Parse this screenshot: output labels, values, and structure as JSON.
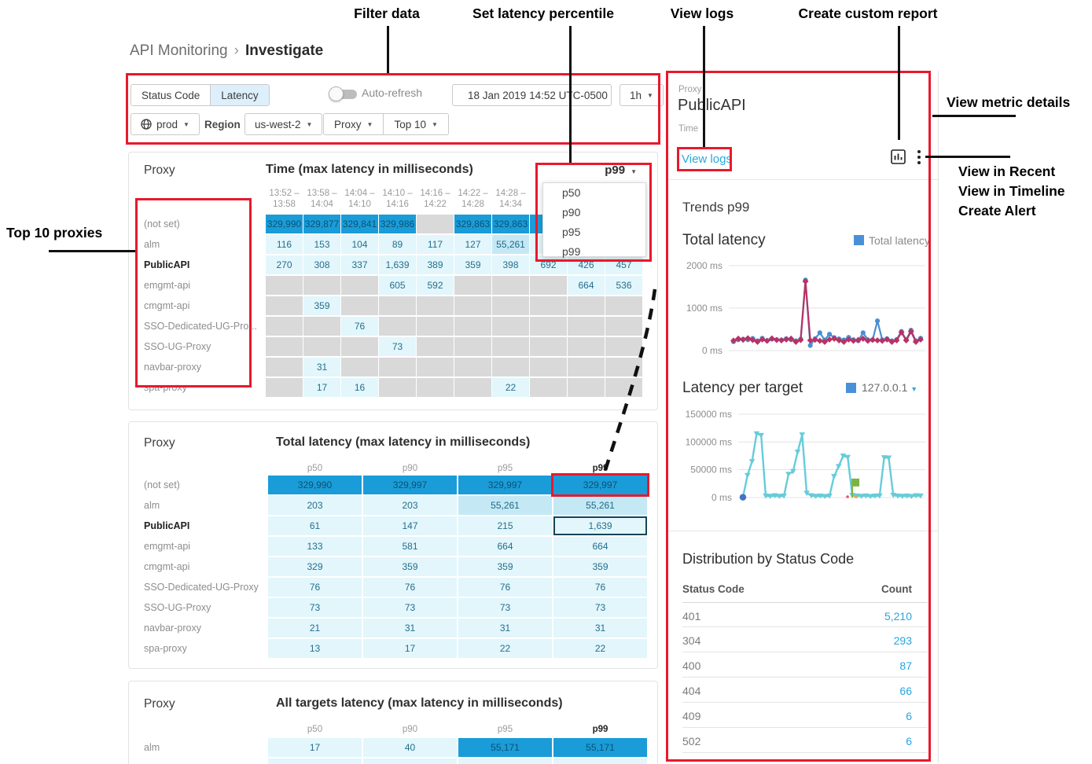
{
  "breadcrumb": {
    "parent": "API Monitoring",
    "separator": "›",
    "current": "Investigate"
  },
  "annotations": {
    "filter_data": "Filter data",
    "set_latency_percentile": "Set latency percentile",
    "view_logs": "View logs",
    "create_custom_report": "Create custom report",
    "view_metric_details": "View metric details",
    "menu_items": [
      "View in Recent",
      "View in Timeline",
      "Create Alert"
    ],
    "top_10_proxies": "Top 10 proxies"
  },
  "toolbar": {
    "metric_tabs": [
      {
        "label": "Status Code",
        "selected": false
      },
      {
        "label": "Latency",
        "selected": true
      }
    ],
    "auto_refresh_label": "Auto-refresh",
    "auto_refresh_on": false,
    "datetime": "18 Jan 2019 14:52 UTC-0500",
    "range": "1h",
    "env": "prod",
    "region_label": "Region",
    "region": "us-west-2",
    "dimension": "Proxy",
    "top_filter": "Top 10"
  },
  "percentile_dropdown": {
    "selected": "p99",
    "options": [
      "p50",
      "p90",
      "p95",
      "p99"
    ]
  },
  "table1": {
    "row_header": "Proxy",
    "title": "Time (max latency in milliseconds)",
    "col_headers": [
      "13:52 –\n13:58",
      "13:58 –\n14:04",
      "14:04 –\n14:10",
      "14:10 –\n14:16",
      "14:16 –\n14:22",
      "14:22 –\n14:28",
      "14:28 –\n14:34",
      "",
      "",
      ""
    ],
    "rows": [
      {
        "label": "(not set)",
        "bold": false,
        "cells": [
          [
            "329,990",
            "dark"
          ],
          [
            "329,877",
            "dark"
          ],
          [
            "329,841",
            "dark"
          ],
          [
            "329,986",
            "dark"
          ],
          [
            "",
            "gray"
          ],
          [
            "329,863",
            "dark"
          ],
          [
            "329,863",
            "dark"
          ],
          [
            "",
            "dark"
          ],
          [
            "",
            "dark"
          ],
          [
            "",
            "dark"
          ]
        ]
      },
      {
        "label": "alm",
        "bold": false,
        "cells": [
          [
            "116",
            "light"
          ],
          [
            "153",
            "light"
          ],
          [
            "104",
            "light"
          ],
          [
            "89",
            "light"
          ],
          [
            "117",
            "light"
          ],
          [
            "127",
            "light"
          ],
          [
            "55,261",
            "med"
          ],
          [
            "",
            "light"
          ],
          [
            "",
            "light"
          ],
          [
            "",
            "light"
          ]
        ]
      },
      {
        "label": "PublicAPI",
        "bold": true,
        "cells": [
          [
            "270",
            "light"
          ],
          [
            "308",
            "light"
          ],
          [
            "337",
            "light"
          ],
          [
            "1,639",
            "light"
          ],
          [
            "389",
            "light"
          ],
          [
            "359",
            "light"
          ],
          [
            "398",
            "light"
          ],
          [
            "692",
            "light"
          ],
          [
            "426",
            "light"
          ],
          [
            "457",
            "light"
          ]
        ]
      },
      {
        "label": "emgmt-api",
        "bold": false,
        "cells": [
          [
            "",
            "gray"
          ],
          [
            "",
            "gray"
          ],
          [
            "",
            "gray"
          ],
          [
            "605",
            "light"
          ],
          [
            "592",
            "light"
          ],
          [
            "",
            "gray"
          ],
          [
            "",
            "gray"
          ],
          [
            "",
            "gray"
          ],
          [
            "664",
            "light"
          ],
          [
            "536",
            "light"
          ]
        ]
      },
      {
        "label": "cmgmt-api",
        "bold": false,
        "cells": [
          [
            "",
            "gray"
          ],
          [
            "359",
            "light"
          ],
          [
            "",
            "gray"
          ],
          [
            "",
            "gray"
          ],
          [
            "",
            "gray"
          ],
          [
            "",
            "gray"
          ],
          [
            "",
            "gray"
          ],
          [
            "",
            "gray"
          ],
          [
            "",
            "gray"
          ],
          [
            "",
            "gray"
          ]
        ]
      },
      {
        "label": "SSO-Dedicated-UG-Pro...",
        "bold": false,
        "cells": [
          [
            "",
            "gray"
          ],
          [
            "",
            "gray"
          ],
          [
            "76",
            "light"
          ],
          [
            "",
            "gray"
          ],
          [
            "",
            "gray"
          ],
          [
            "",
            "gray"
          ],
          [
            "",
            "gray"
          ],
          [
            "",
            "gray"
          ],
          [
            "",
            "gray"
          ],
          [
            "",
            "gray"
          ]
        ]
      },
      {
        "label": "SSO-UG-Proxy",
        "bold": false,
        "cells": [
          [
            "",
            "gray"
          ],
          [
            "",
            "gray"
          ],
          [
            "",
            "gray"
          ],
          [
            "73",
            "light"
          ],
          [
            "",
            "gray"
          ],
          [
            "",
            "gray"
          ],
          [
            "",
            "gray"
          ],
          [
            "",
            "gray"
          ],
          [
            "",
            "gray"
          ],
          [
            "",
            "gray"
          ]
        ]
      },
      {
        "label": "navbar-proxy",
        "bold": false,
        "cells": [
          [
            "",
            "gray"
          ],
          [
            "31",
            "light"
          ],
          [
            "",
            "gray"
          ],
          [
            "",
            "gray"
          ],
          [
            "",
            "gray"
          ],
          [
            "",
            "gray"
          ],
          [
            "",
            "gray"
          ],
          [
            "",
            "gray"
          ],
          [
            "",
            "gray"
          ],
          [
            "",
            "gray"
          ]
        ]
      },
      {
        "label": "spa-proxy",
        "bold": false,
        "cells": [
          [
            "",
            "gray"
          ],
          [
            "17",
            "light"
          ],
          [
            "16",
            "light"
          ],
          [
            "",
            "gray"
          ],
          [
            "",
            "gray"
          ],
          [
            "",
            "gray"
          ],
          [
            "22",
            "light"
          ],
          [
            "",
            "gray"
          ],
          [
            "",
            "gray"
          ],
          [
            "",
            "gray"
          ]
        ]
      }
    ]
  },
  "table2": {
    "row_header": "Proxy",
    "title": "Total latency (max latency in milliseconds)",
    "col_headers": [
      "p50",
      "p90",
      "p95",
      "p99"
    ],
    "rows": [
      {
        "label": "(not set)",
        "bold": false,
        "cells": [
          [
            "329,990",
            "dark"
          ],
          [
            "329,997",
            "dark"
          ],
          [
            "329,997",
            "dark"
          ],
          [
            "329,997",
            "darkred"
          ]
        ]
      },
      {
        "label": "alm",
        "bold": false,
        "cells": [
          [
            "203",
            "light"
          ],
          [
            "203",
            "light"
          ],
          [
            "55,261",
            "med"
          ],
          [
            "55,261",
            "med"
          ]
        ]
      },
      {
        "label": "PublicAPI",
        "bold": true,
        "cells": [
          [
            "61",
            "light"
          ],
          [
            "147",
            "light"
          ],
          [
            "215",
            "light"
          ],
          [
            "1,639",
            "lightsel"
          ]
        ]
      },
      {
        "label": "emgmt-api",
        "bold": false,
        "cells": [
          [
            "133",
            "light"
          ],
          [
            "581",
            "light"
          ],
          [
            "664",
            "light"
          ],
          [
            "664",
            "light"
          ]
        ]
      },
      {
        "label": "cmgmt-api",
        "bold": false,
        "cells": [
          [
            "329",
            "light"
          ],
          [
            "359",
            "light"
          ],
          [
            "359",
            "light"
          ],
          [
            "359",
            "light"
          ]
        ]
      },
      {
        "label": "SSO-Dedicated-UG-Proxy",
        "bold": false,
        "cells": [
          [
            "76",
            "light"
          ],
          [
            "76",
            "light"
          ],
          [
            "76",
            "light"
          ],
          [
            "76",
            "light"
          ]
        ]
      },
      {
        "label": "SSO-UG-Proxy",
        "bold": false,
        "cells": [
          [
            "73",
            "light"
          ],
          [
            "73",
            "light"
          ],
          [
            "73",
            "light"
          ],
          [
            "73",
            "light"
          ]
        ]
      },
      {
        "label": "navbar-proxy",
        "bold": false,
        "cells": [
          [
            "21",
            "light"
          ],
          [
            "31",
            "light"
          ],
          [
            "31",
            "light"
          ],
          [
            "31",
            "light"
          ]
        ]
      },
      {
        "label": "spa-proxy",
        "bold": false,
        "cells": [
          [
            "13",
            "light"
          ],
          [
            "17",
            "light"
          ],
          [
            "22",
            "light"
          ],
          [
            "22",
            "light"
          ]
        ]
      }
    ]
  },
  "table3": {
    "row_header": "Proxy",
    "title": "All targets latency (max latency in milliseconds)",
    "col_headers": [
      "p50",
      "p90",
      "p95",
      "p99"
    ],
    "rows": [
      {
        "label": "alm",
        "bold": false,
        "cells": [
          [
            "17",
            "light"
          ],
          [
            "40",
            "light"
          ],
          [
            "55,171",
            "dark"
          ],
          [
            "55,171",
            "dark"
          ]
        ]
      }
    ],
    "partial_row": [
      "light",
      "light",
      "light",
      "light"
    ]
  },
  "right_panel": {
    "proxy_label": "Proxy",
    "proxy_value": "PublicAPI",
    "time_label": "Time",
    "view_logs": "View logs",
    "trends_title": "Trends p99",
    "status_section_title": "Distribution by Status Code",
    "status_table": {
      "headers": [
        "Status Code",
        "Count"
      ],
      "rows": [
        [
          "401",
          "5,210"
        ],
        [
          "304",
          "293"
        ],
        [
          "400",
          "87"
        ],
        [
          "404",
          "66"
        ],
        [
          "409",
          "6"
        ],
        [
          "502",
          "6"
        ]
      ]
    }
  },
  "chart_data": [
    {
      "type": "line",
      "title": "Total latency",
      "section": "Trends p99",
      "legend": [
        "Total latency"
      ],
      "legend_position": "top-right",
      "grid": true,
      "ylim": [
        0,
        2000
      ],
      "yticks": [
        0,
        1000,
        2000
      ],
      "ytick_labels": [
        "0 ms",
        "1000 ms",
        "2000 ms"
      ],
      "series": [
        {
          "name": "Total latency (p99, blue)",
          "color": "#4a8fd3",
          "marker": "circle",
          "values": [
            210,
            255,
            270,
            255,
            285,
            230,
            290,
            235,
            270,
            255,
            250,
            280,
            255,
            230,
            270,
            1660,
            120,
            280,
            420,
            250,
            385,
            305,
            275,
            250,
            310,
            255,
            230,
            420,
            255,
            250,
            700,
            255,
            280,
            230,
            260,
            450,
            255,
            480,
            230,
            290
          ]
        },
        {
          "name": "Total latency (p99, magenta)",
          "color": "#b93263",
          "marker": "diamond",
          "values": [
            235,
            280,
            255,
            290,
            250,
            205,
            260,
            230,
            285,
            250,
            240,
            260,
            280,
            205,
            250,
            1630,
            240,
            255,
            230,
            205,
            260,
            280,
            240,
            205,
            260,
            230,
            250,
            280,
            230,
            255,
            240,
            230,
            260,
            205,
            240,
            430,
            240,
            450,
            205,
            260
          ]
        }
      ]
    },
    {
      "type": "line",
      "title": "Latency per target",
      "legend": [
        "127.0.0.1"
      ],
      "legend_position": "top-right",
      "grid": true,
      "ylim": [
        0,
        150000
      ],
      "yticks": [
        0,
        50000,
        100000,
        150000
      ],
      "ytick_labels": [
        "0 ms",
        "50000 ms",
        "100000 ms",
        "150000 ms"
      ],
      "series": [
        {
          "name": "127.0.0.1",
          "color": "#66ccd8",
          "marker": "triangle-down",
          "values": [
            500,
            40000,
            65000,
            115000,
            112000,
            3000,
            2500,
            3500,
            2500,
            3000,
            42000,
            47000,
            82000,
            113000,
            8000,
            3500,
            2500,
            3000,
            2200,
            3000,
            38000,
            56000,
            75000,
            72500,
            4000,
            3000,
            2500,
            3200,
            2200,
            3000,
            3200,
            72000,
            71500,
            4200,
            3000,
            2500,
            3000,
            2200,
            3500,
            3000
          ]
        }
      ],
      "annotations": [
        {
          "index": 0,
          "type": "dot",
          "color": "#4472c4"
        },
        {
          "index": 24,
          "type": "flag",
          "color": "#7cb342",
          "value": 20000
        }
      ]
    }
  ]
}
